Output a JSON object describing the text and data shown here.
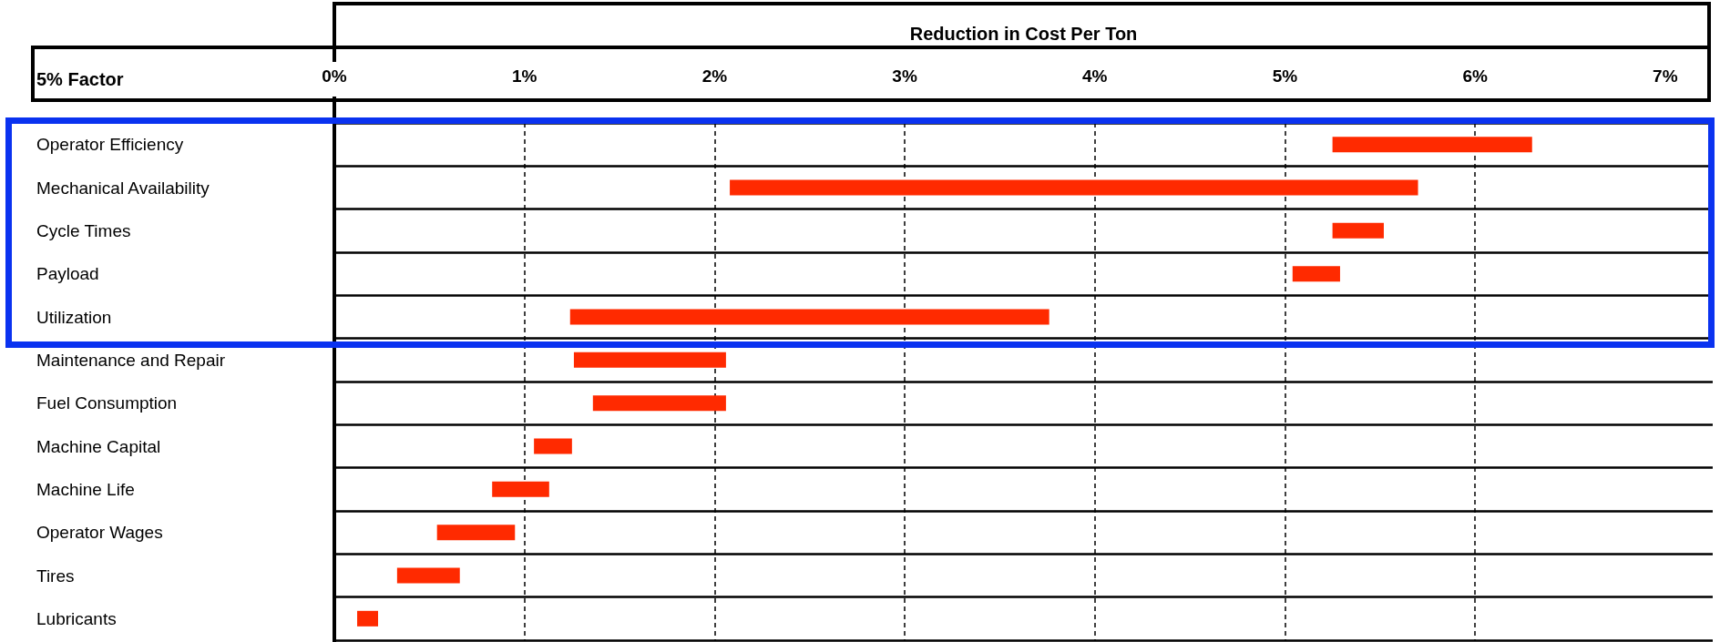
{
  "chart_data": {
    "type": "bar",
    "orientation": "horizontal",
    "xlabel": "Reduction in Cost Per Ton",
    "ylabel": "5% Factor",
    "categories": [
      "Operator Efficiency",
      "Mechanical Availability",
      "Cycle Times",
      "Payload",
      "Utilization",
      "Maintenance and Repair",
      "Fuel Consumption",
      "Machine Capital",
      "Machine Life",
      "Operator Wages",
      "Tires",
      "Lubricants"
    ],
    "base": [
      5.25,
      2.08,
      5.25,
      5.04,
      1.24,
      1.26,
      1.36,
      1.05,
      0.83,
      0.54,
      0.33,
      0.12
    ],
    "values": [
      1.05,
      3.62,
      0.27,
      0.25,
      2.52,
      0.8,
      0.7,
      0.2,
      0.3,
      0.41,
      0.33,
      0.11
    ],
    "color": "#ff2a00",
    "xlim": [
      0,
      7.25
    ],
    "xticks": [
      {
        "value": 0,
        "label": "0%"
      },
      {
        "value": 1,
        "label": "1%"
      },
      {
        "value": 2,
        "label": "2%"
      },
      {
        "value": 3,
        "label": "3%"
      },
      {
        "value": 4,
        "label": "4%"
      },
      {
        "value": 5,
        "label": "5%"
      },
      {
        "value": 6,
        "label": "6%"
      },
      {
        "value": 7,
        "label": "7%"
      }
    ],
    "grid": "x"
  }
}
